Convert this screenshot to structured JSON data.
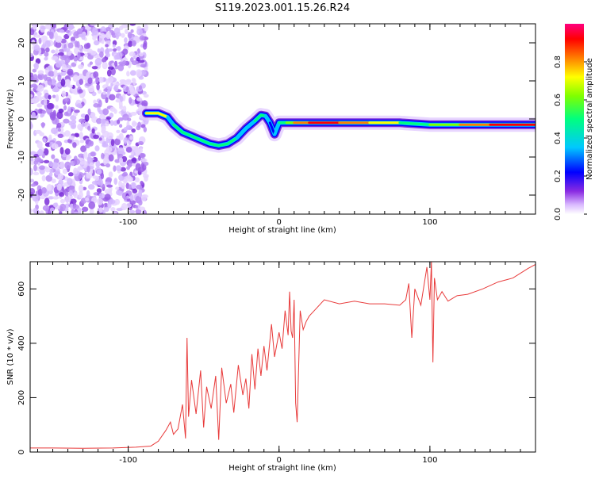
{
  "title": "S119.2023.001.15.26.R24",
  "chart_data": [
    {
      "type": "heatmap",
      "xlabel": "Height of straight line (km)",
      "ylabel": "Frequency (Hz)",
      "xlim": [
        -165,
        170
      ],
      "ylim": [
        -25,
        25
      ],
      "xticks": [
        -100,
        0,
        100
      ],
      "yticks": [
        -20,
        -10,
        0,
        10,
        20
      ],
      "colorbar": {
        "label": "Normalized spectral amplitude",
        "ticks": [
          0.0,
          0.2,
          0.4,
          0.6,
          0.8
        ],
        "range": [
          0,
          1
        ],
        "colors": [
          "#ffffff",
          "#d9b8ff",
          "#8a2be2",
          "#0000ff",
          "#00c8ff",
          "#00ff7f",
          "#7fff00",
          "#ffff00",
          "#ff7f00",
          "#ff0000",
          "#ff007f"
        ]
      },
      "noise_region_x": [
        -165,
        -88
      ],
      "ridge": {
        "x": [
          -88,
          -80,
          -74,
          -70,
          -64,
          -58,
          -52,
          -46,
          -40,
          -34,
          -28,
          -22,
          -16,
          -12,
          -9,
          -6,
          -3,
          0,
          5,
          10,
          20,
          40,
          60,
          80,
          100,
          120,
          140,
          170
        ],
        "freq": [
          1.5,
          1.5,
          0.5,
          -1.5,
          -3.5,
          -4.5,
          -5.5,
          -6.5,
          -7,
          -6.5,
          -5,
          -2.5,
          -0.5,
          1,
          0.8,
          -1,
          -4,
          -1,
          -1,
          -1,
          -1,
          -1,
          -1,
          -1,
          -1.5,
          -1.5,
          -1.5,
          -1.5
        ],
        "amplitude": [
          0.5,
          0.95,
          0.5,
          0.45,
          0.6,
          0.55,
          0.6,
          0.55,
          0.5,
          0.55,
          0.45,
          0.4,
          0.45,
          0.55,
          0.5,
          0.35,
          0.3,
          0.55,
          0.6,
          0.75,
          0.9,
          0.9,
          0.85,
          0.6,
          0.5,
          0.8,
          0.95,
          0.9
        ]
      }
    },
    {
      "type": "line",
      "xlabel": "Height of straight line (km)",
      "ylabel": "SNR (10 * v/v)",
      "xlim": [
        -165,
        170
      ],
      "ylim": [
        0,
        700
      ],
      "xticks": [
        -100,
        0,
        100
      ],
      "yticks": [
        0,
        200,
        400,
        600
      ],
      "color": "#e83a3a",
      "x": [
        -165,
        -150,
        -130,
        -110,
        -95,
        -85,
        -80,
        -75,
        -72,
        -70,
        -67,
        -64,
        -62,
        -61,
        -60,
        -58,
        -55,
        -52,
        -50,
        -48,
        -45,
        -42,
        -40,
        -38,
        -35,
        -32,
        -30,
        -27,
        -24,
        -22,
        -20,
        -18,
        -16,
        -14,
        -12,
        -10,
        -8,
        -5,
        -3,
        0,
        2,
        4,
        6,
        7,
        8,
        9,
        10,
        11,
        12,
        14,
        16,
        18,
        20,
        25,
        30,
        40,
        50,
        60,
        70,
        80,
        84,
        86,
        88,
        90,
        94,
        98,
        100,
        101,
        102,
        103,
        105,
        108,
        112,
        118,
        125,
        135,
        145,
        155,
        165,
        170
      ],
      "y": [
        15,
        15,
        14,
        15,
        18,
        22,
        40,
        80,
        110,
        65,
        85,
        175,
        50,
        420,
        130,
        265,
        140,
        300,
        90,
        240,
        160,
        280,
        45,
        310,
        180,
        250,
        145,
        320,
        210,
        270,
        160,
        360,
        230,
        380,
        280,
        390,
        300,
        470,
        350,
        440,
        380,
        520,
        430,
        590,
        445,
        420,
        560,
        180,
        110,
        520,
        450,
        480,
        500,
        530,
        560,
        545,
        555,
        545,
        545,
        540,
        560,
        620,
        420,
        600,
        540,
        680,
        560,
        700,
        330,
        640,
        560,
        590,
        555,
        575,
        580,
        600,
        625,
        640,
        675,
        690
      ]
    }
  ]
}
